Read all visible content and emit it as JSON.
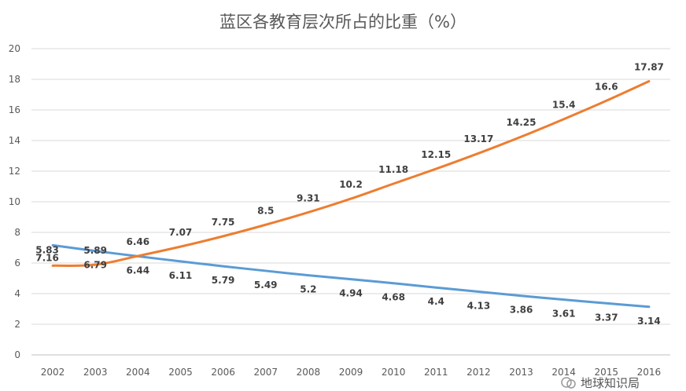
{
  "chart_data": {
    "type": "line",
    "title": "蓝区各教育层次所占的比重（%）",
    "x": [
      "2002",
      "2003",
      "2004",
      "2005",
      "2006",
      "2007",
      "2008",
      "2009",
      "2010",
      "2011",
      "2012",
      "2013",
      "2014",
      "2015",
      "2016"
    ],
    "ylim": [
      0,
      20
    ],
    "yticks": [
      0,
      2,
      4,
      6,
      8,
      10,
      12,
      14,
      16,
      18,
      20
    ],
    "grid": true,
    "legend": "none",
    "series": [
      {
        "color": "#5B9BD5",
        "values": [
          7.16,
          6.79,
          6.44,
          6.11,
          5.79,
          5.49,
          5.2,
          4.94,
          4.68,
          4.4,
          4.13,
          3.86,
          3.61,
          3.37,
          3.14
        ],
        "labels": [
          "7.16",
          "6.79",
          "6.44",
          "6.11",
          "5.79",
          "5.49",
          "5.2",
          "4.94",
          "4.68",
          "4.4",
          "4.13",
          "3.86",
          "3.61",
          "3.37",
          "3.14"
        ]
      },
      {
        "color": "#ED7D31",
        "values": [
          5.83,
          5.89,
          6.46,
          7.07,
          7.75,
          8.5,
          9.31,
          10.2,
          11.18,
          12.15,
          13.17,
          14.25,
          15.4,
          16.6,
          17.87
        ],
        "labels": [
          "5.83",
          "5.89",
          "6.46",
          "7.07",
          "7.75",
          "8.5",
          "9.31",
          "10.2",
          "11.18",
          "12.15",
          "13.17",
          "14.25",
          "15.4",
          "16.6",
          "17.87"
        ]
      }
    ]
  },
  "watermark": {
    "text": "地球知识局",
    "icon": "wechat-icon"
  }
}
